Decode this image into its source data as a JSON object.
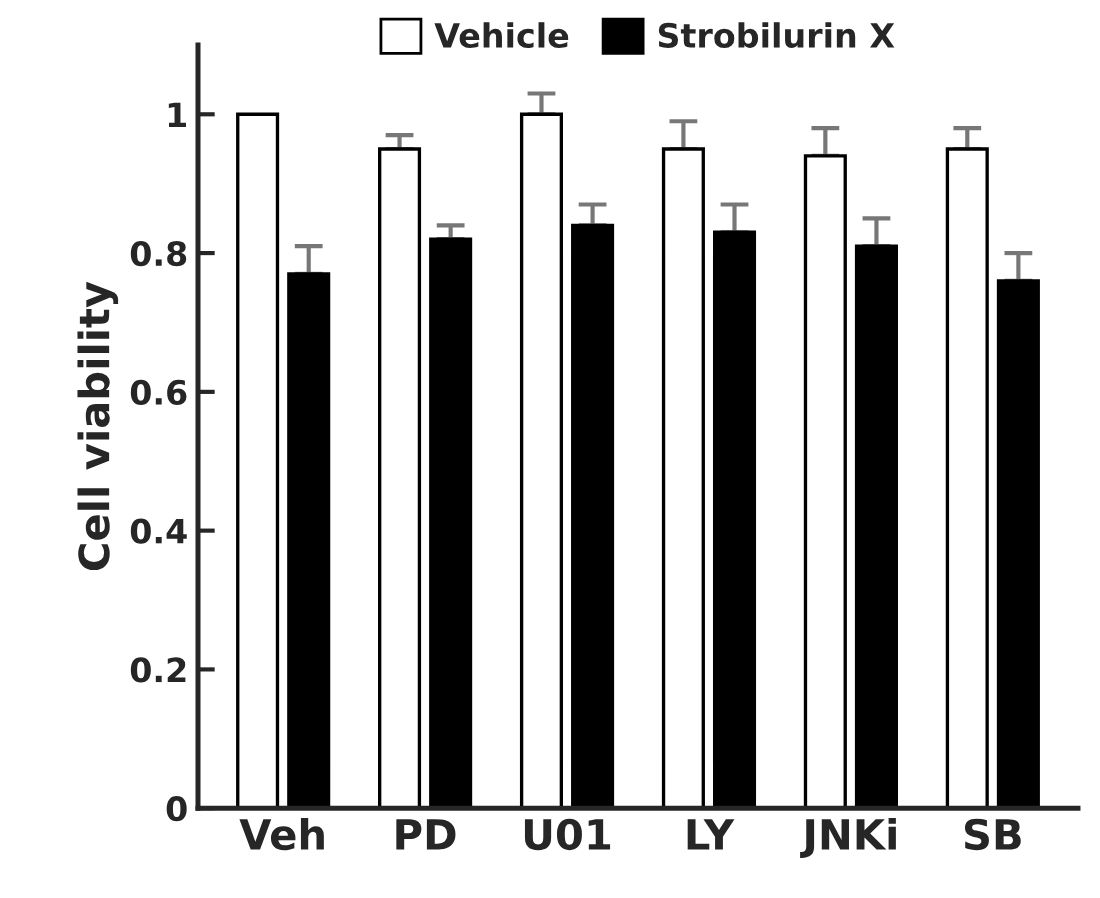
{
  "chart_data": {
    "type": "bar",
    "ylabel": "Cell viability",
    "categories": [
      "Veh",
      "PD",
      "U01",
      "LY",
      "JNKi",
      "SB"
    ],
    "series": [
      {
        "name": "Vehicle",
        "color": "#ffffff",
        "values": [
          1.0,
          0.95,
          1.0,
          0.95,
          0.94,
          0.95
        ],
        "errors": [
          null,
          [
            0.95,
            0.97
          ],
          [
            1.0,
            1.03
          ],
          [
            0.95,
            0.99
          ],
          [
            0.94,
            0.98
          ],
          [
            0.95,
            0.98
          ]
        ]
      },
      {
        "name": "Strobilurin X",
        "color": "#000000",
        "values": [
          0.77,
          0.82,
          0.84,
          0.83,
          0.81,
          0.76
        ],
        "errors": [
          [
            0.77,
            0.81
          ],
          [
            0.82,
            0.84
          ],
          [
            0.84,
            0.87
          ],
          [
            0.83,
            0.87
          ],
          [
            0.81,
            0.85
          ],
          [
            0.76,
            0.8
          ]
        ]
      }
    ],
    "ylim": [
      0,
      1.1
    ],
    "yticks": [
      0,
      0.2,
      0.4,
      0.6,
      0.8,
      1
    ],
    "grid": false,
    "legend": "top"
  }
}
